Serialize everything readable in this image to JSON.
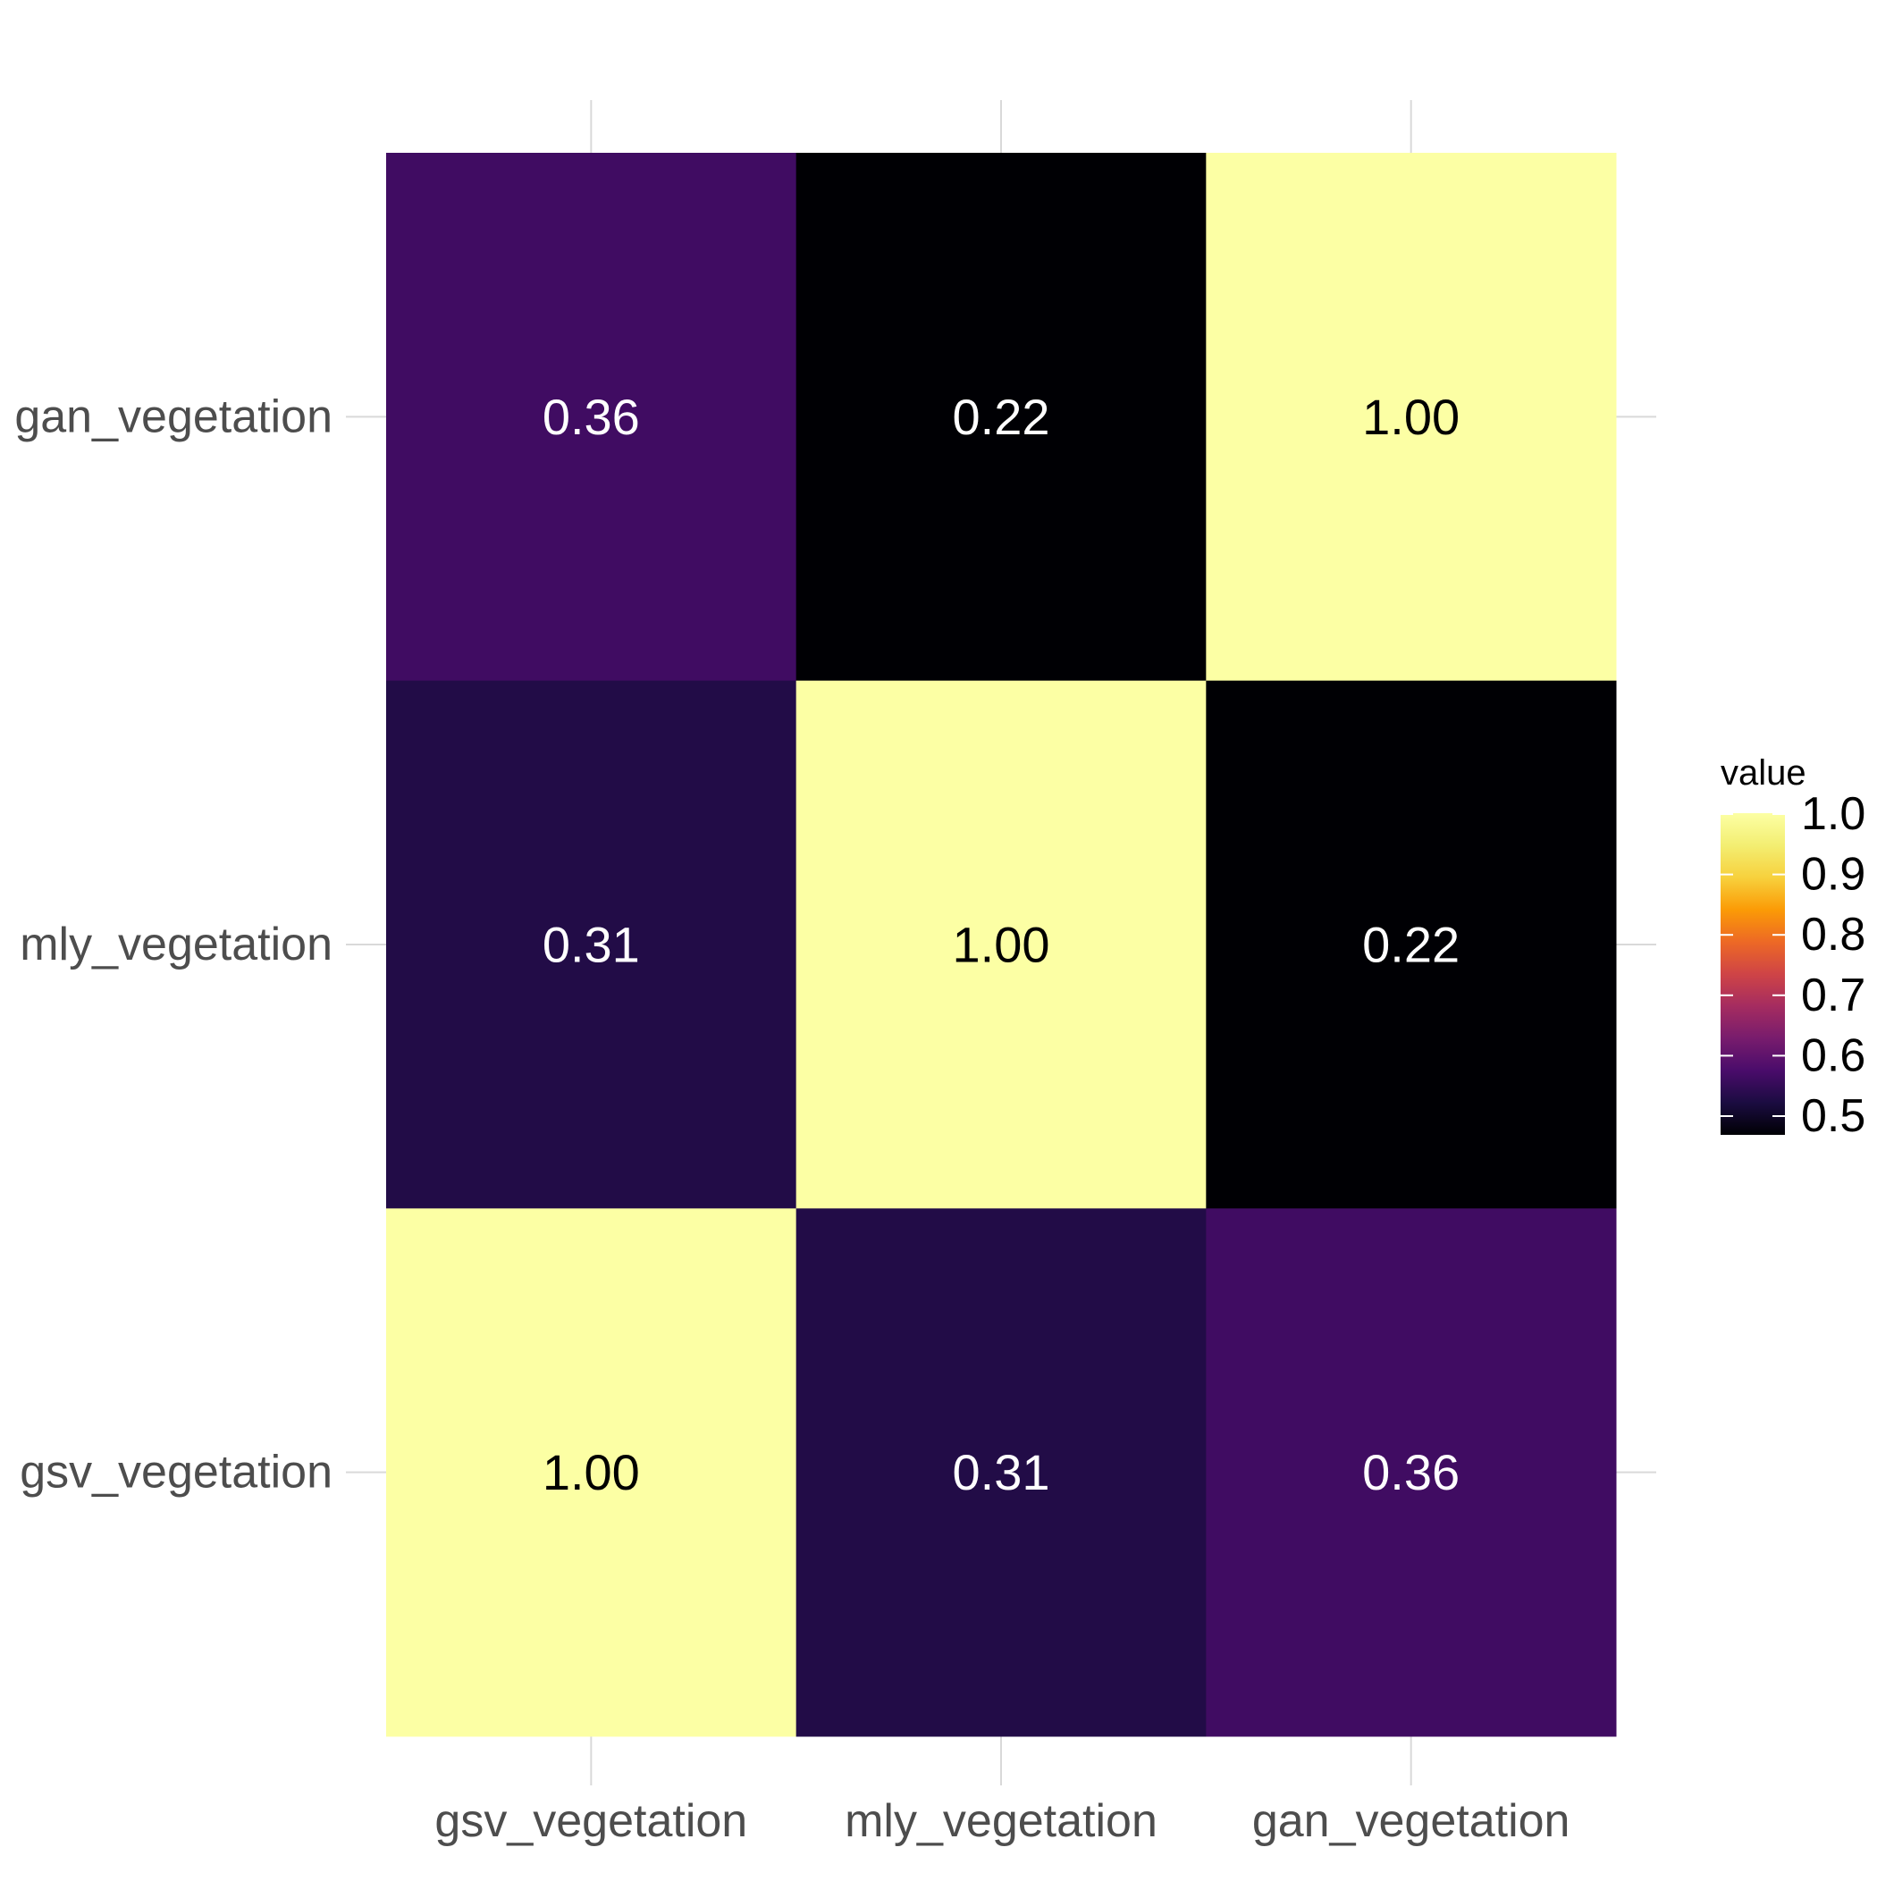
{
  "chart_data": {
    "type": "heatmap",
    "title": "",
    "xlabel": "",
    "ylabel": "",
    "x_categories": [
      "gsv_vegetation",
      "mly_vegetation",
      "gan_vegetation"
    ],
    "y_categories": [
      "gsv_vegetation",
      "mly_vegetation",
      "gan_vegetation"
    ],
    "cells": [
      {
        "x": "gsv_vegetation",
        "y": "gan_vegetation",
        "value": 0.36,
        "label": "0.36"
      },
      {
        "x": "mly_vegetation",
        "y": "gan_vegetation",
        "value": 0.22,
        "label": "0.22"
      },
      {
        "x": "gan_vegetation",
        "y": "gan_vegetation",
        "value": 1.0,
        "label": "1.00"
      },
      {
        "x": "gsv_vegetation",
        "y": "mly_vegetation",
        "value": 0.31,
        "label": "0.31"
      },
      {
        "x": "mly_vegetation",
        "y": "mly_vegetation",
        "value": 1.0,
        "label": "1.00"
      },
      {
        "x": "gan_vegetation",
        "y": "mly_vegetation",
        "value": 0.22,
        "label": "0.22"
      },
      {
        "x": "gsv_vegetation",
        "y": "gsv_vegetation",
        "value": 1.0,
        "label": "1.00"
      },
      {
        "x": "mly_vegetation",
        "y": "gsv_vegetation",
        "value": 0.31,
        "label": "0.31"
      },
      {
        "x": "gan_vegetation",
        "y": "gsv_vegetation",
        "value": 0.36,
        "label": "0.36"
      }
    ],
    "colormap": "inferno",
    "legend": {
      "title": "value",
      "placement": "right",
      "ticks": [
        "0.5",
        "0.6",
        "0.7",
        "0.8",
        "0.9",
        "1.0"
      ],
      "range": [
        0.5,
        1.0
      ]
    },
    "grid": true,
    "colors": {
      "gan_gsv": "#5a106c",
      "mly_mly_offdiag": "#000004",
      "gsv_mly": "#320a55",
      "high": "#fcffa4"
    }
  }
}
